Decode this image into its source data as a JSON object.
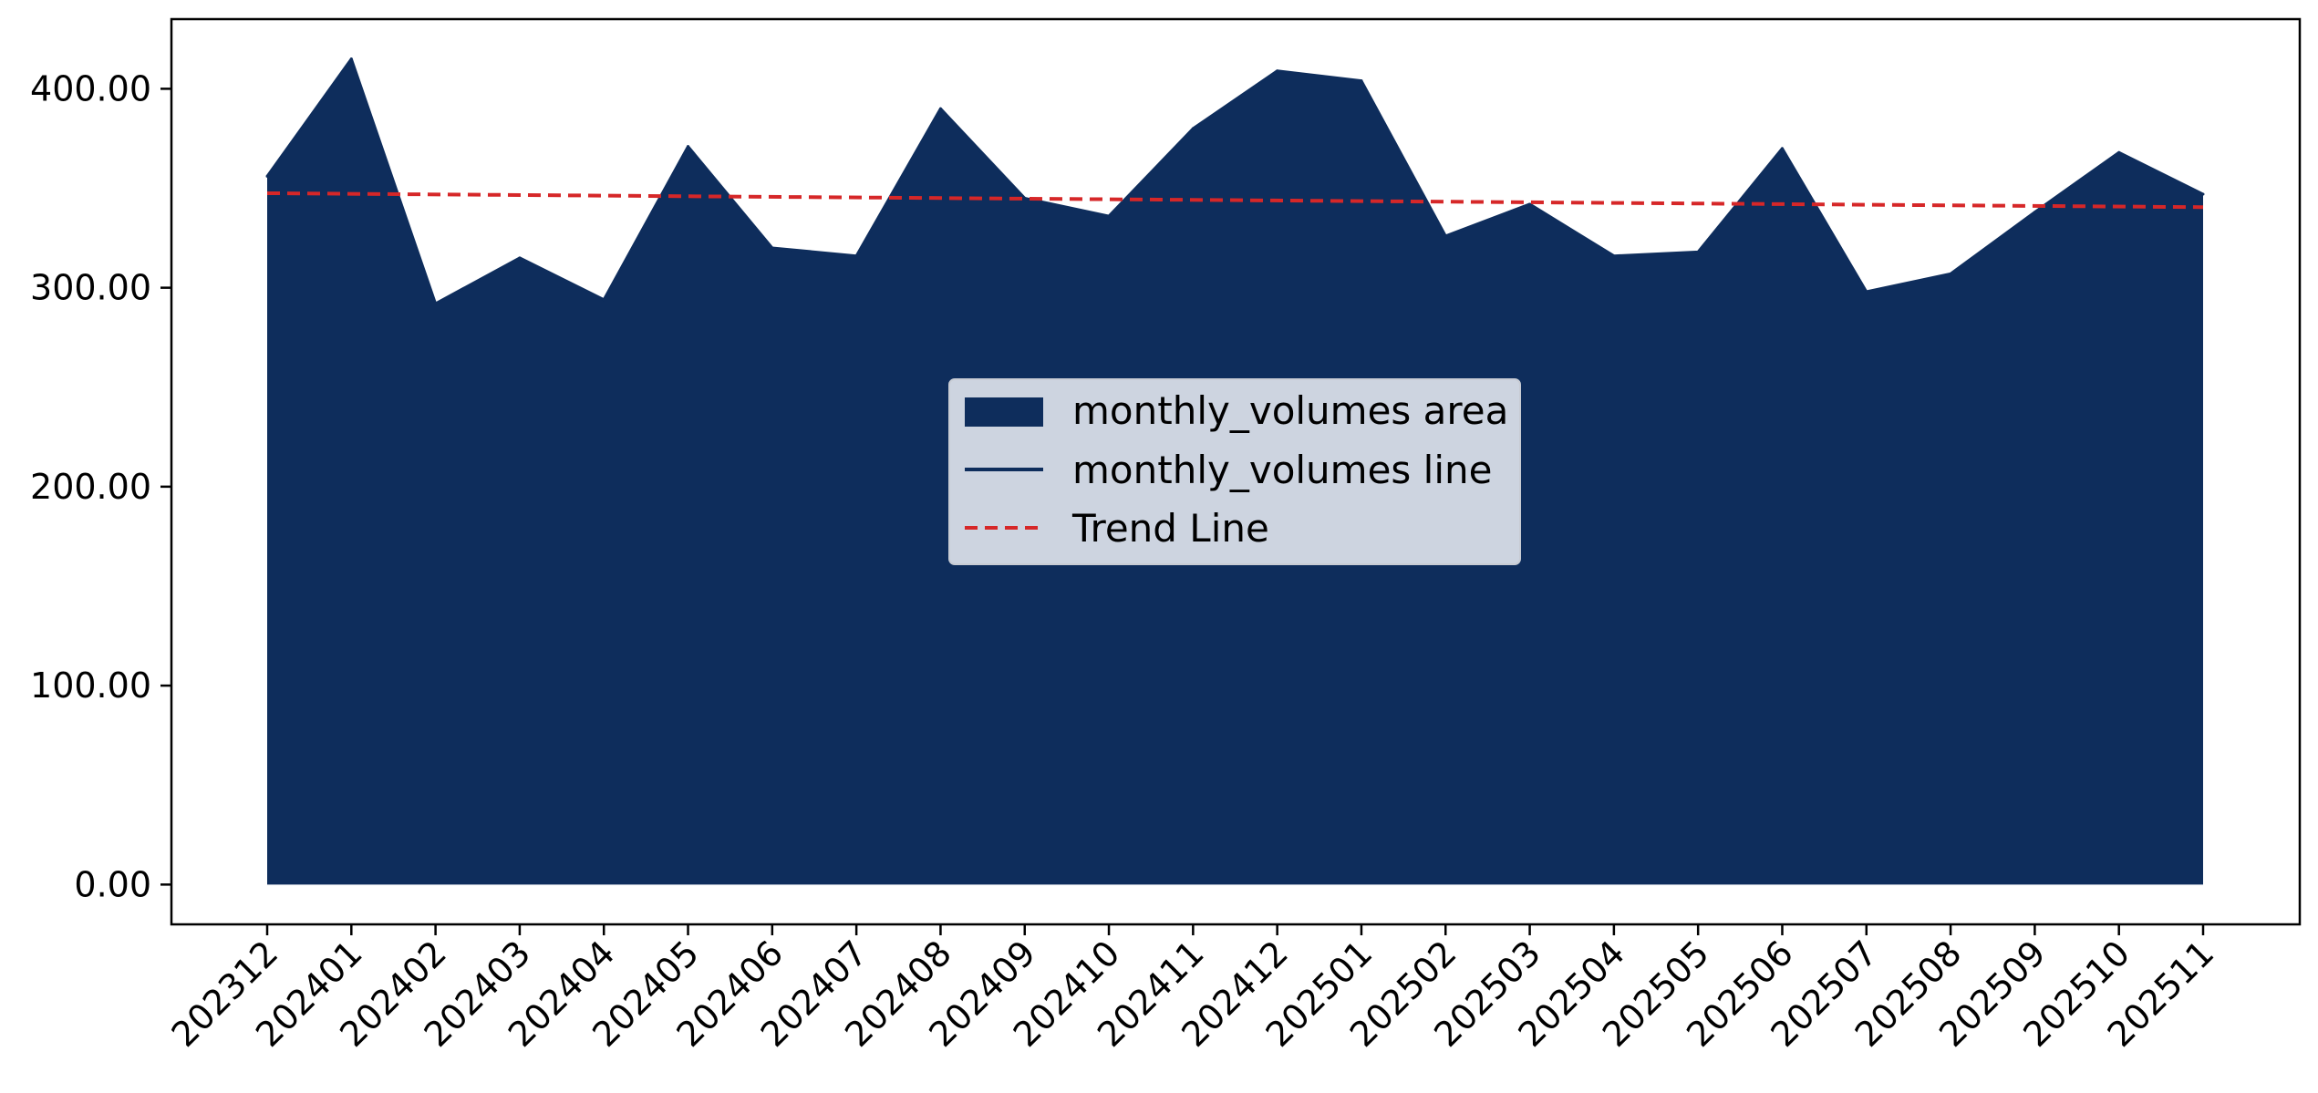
{
  "chart_data": {
    "type": "area",
    "title": "",
    "xlabel": "",
    "ylabel": "",
    "categories": [
      "202312",
      "202401",
      "202402",
      "202403",
      "202404",
      "202405",
      "202406",
      "202407",
      "202408",
      "202409",
      "202410",
      "202411",
      "202412",
      "202501",
      "202502",
      "202503",
      "202504",
      "202505",
      "202506",
      "202507",
      "202508",
      "202509",
      "202510",
      "202511"
    ],
    "series": [
      {
        "name": "monthly_volumes",
        "values": [
          356,
          415,
          292,
          315,
          294,
          371,
          320,
          316,
          390,
          345,
          336,
          380,
          409,
          404,
          326,
          342,
          316,
          318,
          370,
          298,
          307,
          338,
          368,
          347
        ],
        "area_label": "monthly_volumes area",
        "line_label": "monthly_volumes line",
        "color": "#0e2d5c"
      }
    ],
    "trend": {
      "name": "Trend Line",
      "start": 347.5,
      "end": 340.5,
      "color": "#d62728",
      "style": "dashed"
    },
    "ylim": [
      -20,
      435
    ],
    "yticks": [
      0,
      100,
      200,
      300,
      400
    ],
    "ytick_labels": [
      "0.00",
      "100.00",
      "200.00",
      "300.00",
      "400.00"
    ],
    "grid": false,
    "legend_position": "center"
  }
}
